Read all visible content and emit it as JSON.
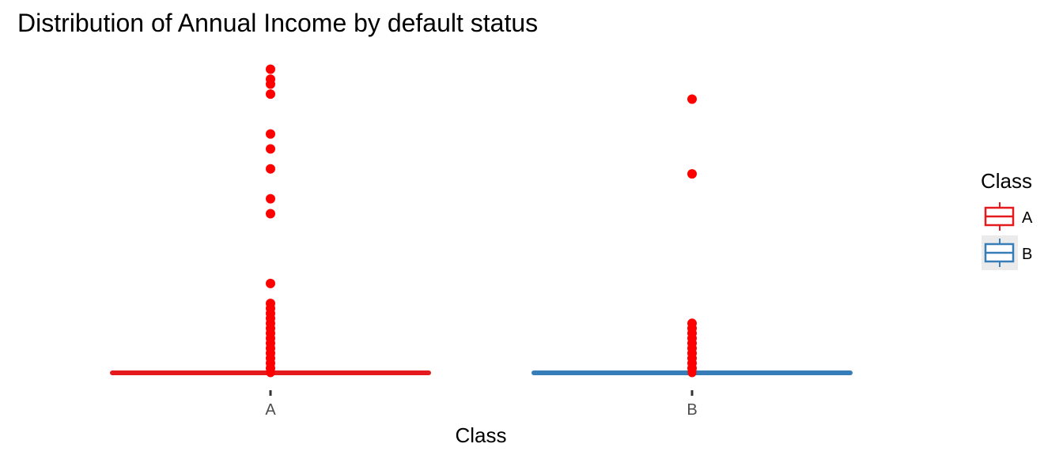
{
  "chart_data": {
    "type": "boxplot",
    "title": "Distribution of Annual Income by default status",
    "xlabel": "Class",
    "ylabel": "",
    "categories": [
      "A",
      "B"
    ],
    "y_axis_visible": false,
    "grid": false,
    "outlier_color": "#ff0000",
    "series": [
      {
        "name": "A",
        "color": "#e41a1c",
        "box": {
          "lower_whisker": 0,
          "q1": 0,
          "median": 0,
          "q3": 0,
          "upper_whisker": 0
        },
        "outliers": [
          100,
          98,
          97,
          95,
          87,
          84,
          80,
          74,
          71,
          57,
          53,
          52,
          51,
          50,
          49,
          48,
          47,
          46,
          45,
          44,
          43,
          42,
          41,
          40
        ]
      },
      {
        "name": "B",
        "color": "#377eb8",
        "box": {
          "lower_whisker": 0,
          "q1": 0,
          "median": 0,
          "q3": 0,
          "upper_whisker": 0
        },
        "outliers": [
          94,
          79,
          49,
          48,
          47,
          46,
          45,
          44,
          43,
          42,
          41,
          40
        ]
      }
    ],
    "ylim": [
      37,
      102
    ],
    "legend": {
      "title": "Class",
      "position": "right",
      "entries": [
        "A",
        "B"
      ]
    }
  }
}
